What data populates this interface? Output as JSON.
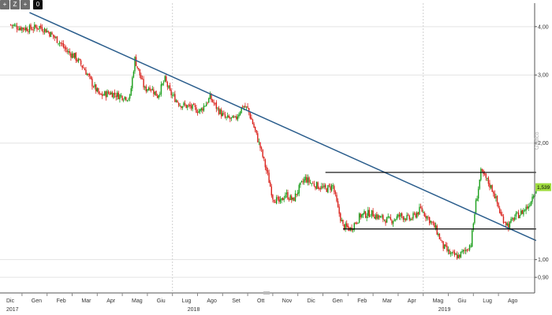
{
  "toolbar": {
    "buttons": [
      {
        "name": "crosshair-tool-button",
        "glyph": "+"
      },
      {
        "name": "draw-tool-button",
        "glyph": "Z"
      },
      {
        "name": "pan-tool-button",
        "glyph": "+"
      }
    ],
    "active_label": "0"
  },
  "side_tab_label": "Grafico",
  "colors": {
    "up": "#1a9e1a",
    "down": "#d9211b",
    "trendline": "#2a5d8c",
    "hline": "#000000",
    "badge": "#9fdc3f"
  },
  "chart_data": {
    "type": "candlestick",
    "title": "",
    "y_scale": "log",
    "ylim": [
      0.82,
      4.6
    ],
    "y_ticks": [
      {
        "value": 4.0,
        "label": "4,00"
      },
      {
        "value": 3.0,
        "label": "3,00"
      },
      {
        "value": 2.0,
        "label": "2,00"
      },
      {
        "value": 1.0,
        "label": "1,00"
      },
      {
        "value": 0.9,
        "label": "0,90"
      }
    ],
    "x_months": [
      "Dic",
      "Gen",
      "Feb",
      "Mar",
      "Apr",
      "Mag",
      "Giu",
      "Lug",
      "Ago",
      "Set",
      "Ott",
      "Nov",
      "Dic",
      "Gen",
      "Feb",
      "Mar",
      "Apr",
      "Mag",
      "Giu",
      "Lug",
      "Ago"
    ],
    "x_years": [
      "2017",
      "2018",
      "2019"
    ],
    "x_year_month_index": [
      0,
      7,
      17
    ],
    "last_value_label": "1,539",
    "last_value": 1.539,
    "trendlines": [
      {
        "from": {
          "m": 0.8,
          "v": 4.35
        },
        "to": {
          "m": 21.0,
          "v": 1.12
        }
      }
    ],
    "horizontal_lines": [
      {
        "value": 1.68,
        "from_m": 12.6,
        "to_m": 21.0
      },
      {
        "value": 1.2,
        "from_m": 13.3,
        "to_m": 21.0
      }
    ],
    "close_anchors": [
      [
        0.0,
        4.05
      ],
      [
        0.4,
        3.98
      ],
      [
        0.8,
        3.95
      ],
      [
        1.2,
        4.0
      ],
      [
        1.5,
        3.9
      ],
      [
        1.8,
        3.75
      ],
      [
        2.0,
        3.65
      ],
      [
        2.3,
        3.45
      ],
      [
        2.6,
        3.35
      ],
      [
        3.0,
        3.1
      ],
      [
        3.3,
        2.85
      ],
      [
        3.6,
        2.65
      ],
      [
        4.0,
        2.7
      ],
      [
        4.4,
        2.65
      ],
      [
        4.8,
        2.62
      ],
      [
        5.0,
        3.3
      ],
      [
        5.2,
        3.0
      ],
      [
        5.4,
        2.75
      ],
      [
        5.6,
        2.8
      ],
      [
        5.9,
        2.65
      ],
      [
        6.2,
        2.92
      ],
      [
        6.4,
        2.7
      ],
      [
        6.8,
        2.52
      ],
      [
        7.2,
        2.48
      ],
      [
        7.6,
        2.42
      ],
      [
        8.0,
        2.62
      ],
      [
        8.3,
        2.45
      ],
      [
        8.6,
        2.32
      ],
      [
        9.0,
        2.3
      ],
      [
        9.3,
        2.5
      ],
      [
        9.5,
        2.45
      ],
      [
        9.7,
        2.25
      ],
      [
        10.0,
        1.95
      ],
      [
        10.3,
        1.65
      ],
      [
        10.5,
        1.45
      ],
      [
        10.8,
        1.4
      ],
      [
        11.0,
        1.48
      ],
      [
        11.3,
        1.42
      ],
      [
        11.6,
        1.55
      ],
      [
        11.8,
        1.62
      ],
      [
        12.0,
        1.58
      ],
      [
        12.3,
        1.55
      ],
      [
        12.6,
        1.52
      ],
      [
        12.9,
        1.55
      ],
      [
        13.1,
        1.35
      ],
      [
        13.3,
        1.22
      ],
      [
        13.6,
        1.2
      ],
      [
        14.0,
        1.3
      ],
      [
        14.4,
        1.32
      ],
      [
        14.8,
        1.28
      ],
      [
        15.2,
        1.26
      ],
      [
        15.6,
        1.3
      ],
      [
        16.0,
        1.27
      ],
      [
        16.4,
        1.35
      ],
      [
        16.7,
        1.28
      ],
      [
        17.0,
        1.2
      ],
      [
        17.3,
        1.08
      ],
      [
        17.6,
        1.03
      ],
      [
        17.9,
        1.02
      ],
      [
        18.2,
        1.06
      ],
      [
        18.4,
        1.1
      ],
      [
        18.6,
        1.4
      ],
      [
        18.8,
        1.68
      ],
      [
        19.0,
        1.62
      ],
      [
        19.3,
        1.5
      ],
      [
        19.6,
        1.3
      ],
      [
        19.9,
        1.22
      ],
      [
        20.1,
        1.28
      ],
      [
        20.4,
        1.32
      ],
      [
        20.7,
        1.38
      ],
      [
        21.0,
        1.539
      ]
    ]
  }
}
